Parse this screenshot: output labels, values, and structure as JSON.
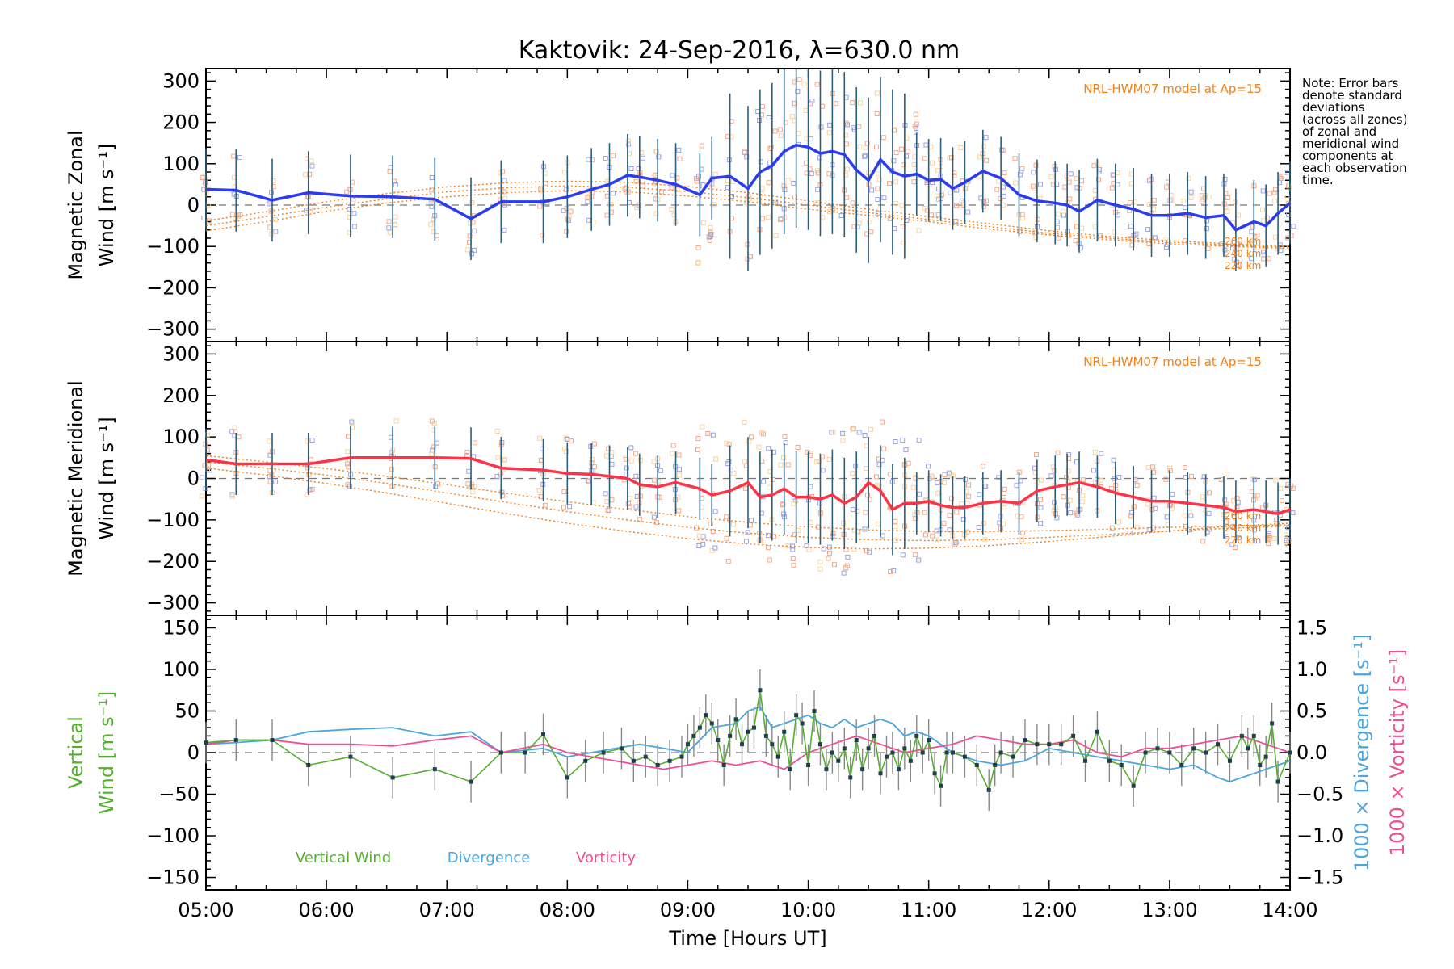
{
  "title": "Kaktovik: 24-Sep-2016, λ=630.0 nm",
  "note": [
    "Note: Error bars",
    "denote standard",
    "deviations",
    "(across all zones)",
    "of zonal and",
    "meridional wind",
    "components at",
    "each observation",
    "time."
  ],
  "colors": {
    "zonal": "#2b3bf0",
    "meridional": "#ff3347",
    "vertical": "#55b02e",
    "divergence": "#4aa6dd",
    "vorticity": "#ee4f93",
    "model": "#f0801a",
    "errbar": "#2a5f7e"
  },
  "chart_data": [
    {
      "type": "line",
      "ylabel": [
        "Magnetic Zonal",
        "Wind [m s⁻¹]"
      ],
      "ylim": [
        -330,
        330
      ],
      "yticks": [
        "300",
        "200",
        "100",
        "0",
        "−100",
        "−200",
        "−300"
      ],
      "model_label": "NRL-HWM07 model at Ap=15",
      "model_altitudes": [
        "260 km",
        "240 km",
        "220 km"
      ],
      "series": [
        {
          "x": [
            5.0,
            5.25,
            5.55,
            5.85,
            6.2,
            6.55,
            6.9,
            7.2,
            7.45,
            7.8,
            8.0,
            8.2,
            8.35,
            8.5,
            8.6,
            8.75,
            8.9,
            9.1,
            9.2,
            9.35,
            9.5,
            9.6,
            9.7,
            9.8,
            9.9,
            10.0,
            10.1,
            10.2,
            10.3,
            10.4,
            10.5,
            10.6,
            10.7,
            10.8,
            10.9,
            11.0,
            11.1,
            11.2,
            11.3,
            11.45,
            11.6,
            11.75,
            11.9,
            12.05,
            12.15,
            12.25,
            12.4,
            12.55,
            12.7,
            12.85,
            13.0,
            13.15,
            13.3,
            13.45,
            13.55,
            13.7,
            13.8,
            13.9,
            14.0
          ],
          "values": [
            38,
            36,
            12,
            30,
            22,
            20,
            14,
            -33,
            8,
            8,
            20,
            38,
            50,
            72,
            68,
            60,
            50,
            25,
            65,
            70,
            40,
            80,
            95,
            130,
            145,
            140,
            125,
            130,
            122,
            85,
            60,
            110,
            80,
            70,
            75,
            60,
            62,
            40,
            55,
            82,
            65,
            25,
            10,
            5,
            0,
            -15,
            12,
            0,
            -10,
            -25,
            -25,
            -20,
            -30,
            -25,
            -60,
            -40,
            -50,
            -20,
            5
          ]
        }
      ],
      "model_values": [
        {
          "x": [
            5.0,
            5.5,
            6.0,
            6.5,
            7.0,
            7.5,
            8.0,
            8.5,
            9.0,
            9.5,
            10.0,
            10.5,
            11.0,
            11.5,
            12.0,
            12.5,
            13.0,
            13.5,
            14.0
          ],
          "values": [
            -62,
            -40,
            -15,
            5,
            20,
            30,
            35,
            32,
            22,
            8,
            -10,
            -25,
            -40,
            -58,
            -72,
            -84,
            -94,
            -100,
            -105
          ]
        },
        {
          "x": [
            5.0,
            5.5,
            6.0,
            6.5,
            7.0,
            7.5,
            8.0,
            8.5,
            9.0,
            9.5,
            10.0,
            10.5,
            11.0,
            11.5,
            12.0,
            12.5,
            13.0,
            13.5,
            14.0
          ],
          "values": [
            -50,
            -28,
            -5,
            15,
            32,
            42,
            46,
            43,
            33,
            18,
            0,
            -18,
            -35,
            -52,
            -68,
            -80,
            -90,
            -97,
            -102
          ]
        },
        {
          "x": [
            5.0,
            5.5,
            6.0,
            6.5,
            7.0,
            7.5,
            8.0,
            8.5,
            9.0,
            9.5,
            10.0,
            10.5,
            11.0,
            11.5,
            12.0,
            12.5,
            13.0,
            13.5,
            14.0
          ],
          "values": [
            -38,
            -16,
            8,
            28,
            44,
            54,
            58,
            55,
            45,
            30,
            10,
            -10,
            -28,
            -45,
            -62,
            -76,
            -86,
            -94,
            -100
          ]
        }
      ]
    },
    {
      "type": "line",
      "ylabel": [
        "Magnetic Meridional",
        "Wind [m s⁻¹]"
      ],
      "ylim": [
        -330,
        330
      ],
      "yticks": [
        "300",
        "200",
        "100",
        "0",
        "−100",
        "−200",
        "−300"
      ],
      "model_label": "NRL-HWM07 model at Ap=15",
      "model_altitudes": [
        "260 km",
        "240 km",
        "220 km"
      ],
      "series": [
        {
          "x": [
            5.0,
            5.25,
            5.55,
            5.85,
            6.2,
            6.55,
            6.9,
            7.2,
            7.45,
            7.8,
            8.0,
            8.2,
            8.35,
            8.5,
            8.6,
            8.75,
            8.9,
            9.1,
            9.2,
            9.35,
            9.5,
            9.6,
            9.7,
            9.8,
            9.9,
            10.0,
            10.1,
            10.2,
            10.3,
            10.4,
            10.5,
            10.6,
            10.7,
            10.8,
            10.9,
            11.0,
            11.1,
            11.2,
            11.3,
            11.45,
            11.6,
            11.75,
            11.9,
            12.05,
            12.15,
            12.25,
            12.4,
            12.55,
            12.7,
            12.85,
            13.0,
            13.15,
            13.3,
            13.45,
            13.55,
            13.7,
            13.8,
            13.9,
            14.0
          ],
          "values": [
            45,
            35,
            35,
            35,
            50,
            50,
            50,
            48,
            25,
            20,
            12,
            10,
            5,
            0,
            -15,
            -20,
            -10,
            -25,
            -40,
            -30,
            -10,
            -45,
            -40,
            -25,
            -45,
            -45,
            -50,
            -40,
            -60,
            -45,
            -10,
            -30,
            -75,
            -60,
            -60,
            -55,
            -65,
            -70,
            -70,
            -60,
            -55,
            -60,
            -30,
            -20,
            -15,
            -10,
            -20,
            -35,
            -45,
            -55,
            -55,
            -60,
            -65,
            -70,
            -80,
            -75,
            -80,
            -85,
            -75
          ]
        }
      ],
      "model_values": [
        {
          "x": [
            5.0,
            5.5,
            6.0,
            6.5,
            7.0,
            7.5,
            8.0,
            8.5,
            9.0,
            9.5,
            10.0,
            10.5,
            11.0,
            11.5,
            12.0,
            12.5,
            13.0,
            13.5,
            14.0
          ],
          "values": [
            25,
            8,
            -12,
            -35,
            -60,
            -85,
            -108,
            -128,
            -145,
            -158,
            -166,
            -170,
            -168,
            -162,
            -152,
            -140,
            -127,
            -115,
            -108
          ]
        },
        {
          "x": [
            5.0,
            5.5,
            6.0,
            6.5,
            7.0,
            7.5,
            8.0,
            8.5,
            9.0,
            9.5,
            10.0,
            10.5,
            11.0,
            11.5,
            12.0,
            12.5,
            13.0,
            13.5,
            14.0
          ],
          "values": [
            40,
            25,
            8,
            -12,
            -35,
            -58,
            -80,
            -100,
            -118,
            -132,
            -142,
            -148,
            -150,
            -148,
            -142,
            -135,
            -127,
            -120,
            -115
          ]
        },
        {
          "x": [
            5.0,
            5.5,
            6.0,
            6.5,
            7.0,
            7.5,
            8.0,
            8.5,
            9.0,
            9.5,
            10.0,
            10.5,
            11.0,
            11.5,
            12.0,
            12.5,
            13.0,
            13.5,
            14.0
          ],
          "values": [
            55,
            40,
            24,
            5,
            -15,
            -36,
            -56,
            -75,
            -92,
            -106,
            -117,
            -124,
            -128,
            -128,
            -126,
            -122,
            -118,
            -114,
            -112
          ]
        }
      ]
    },
    {
      "type": "line",
      "ylabel": [
        "Vertical",
        "Wind [m s⁻¹]"
      ],
      "ylim": [
        -165,
        165
      ],
      "yticks": [
        "150",
        "100",
        "50",
        "0",
        "−50",
        "−100",
        "−150"
      ],
      "y2label_div": "1000 × Divergence [s⁻¹]",
      "y2label_vor": "1000 × Vorticity [s⁻¹]",
      "y2lim": [
        -1.65,
        1.65
      ],
      "y2ticks": [
        "1.5",
        "1.0",
        "0.5",
        "0.0",
        "−0.5",
        "−1.0",
        "−1.5"
      ],
      "xlabel": "Time [Hours UT]",
      "xticks": [
        "05:00",
        "06:00",
        "07:00",
        "08:00",
        "09:00",
        "10:00",
        "11:00",
        "12:00",
        "13:00",
        "14:00"
      ],
      "legend": [
        "Vertical Wind",
        "Divergence",
        "Vorticity"
      ],
      "series": [
        {
          "name": "Vertical Wind",
          "x": [
            5.0,
            5.25,
            5.55,
            5.85,
            6.2,
            6.55,
            6.9,
            7.2,
            7.45,
            7.65,
            7.8,
            8.0,
            8.15,
            8.3,
            8.45,
            8.55,
            8.65,
            8.75,
            8.85,
            8.95,
            9.0,
            9.05,
            9.1,
            9.15,
            9.2,
            9.25,
            9.3,
            9.35,
            9.4,
            9.45,
            9.5,
            9.55,
            9.6,
            9.65,
            9.7,
            9.75,
            9.8,
            9.85,
            9.9,
            9.95,
            10.0,
            10.05,
            10.1,
            10.15,
            10.2,
            10.25,
            10.3,
            10.35,
            10.4,
            10.45,
            10.5,
            10.55,
            10.6,
            10.65,
            10.7,
            10.75,
            10.8,
            10.85,
            10.9,
            10.95,
            11.0,
            11.05,
            11.1,
            11.15,
            11.2,
            11.3,
            11.4,
            11.5,
            11.55,
            11.6,
            11.7,
            11.8,
            11.9,
            12.0,
            12.1,
            12.2,
            12.3,
            12.4,
            12.5,
            12.6,
            12.7,
            12.8,
            12.9,
            13.0,
            13.1,
            13.2,
            13.3,
            13.4,
            13.5,
            13.6,
            13.65,
            13.7,
            13.75,
            13.8,
            13.85,
            13.9,
            14.0
          ],
          "values": [
            12,
            15,
            15,
            -15,
            -5,
            -30,
            -20,
            -35,
            0,
            0,
            22,
            -30,
            -10,
            0,
            5,
            -10,
            -5,
            -15,
            -10,
            -5,
            10,
            20,
            30,
            45,
            35,
            15,
            -15,
            20,
            40,
            10,
            25,
            30,
            75,
            20,
            10,
            -5,
            25,
            -20,
            45,
            35,
            -15,
            50,
            10,
            -20,
            0,
            -10,
            5,
            -30,
            15,
            -20,
            5,
            20,
            -25,
            -5,
            0,
            -20,
            5,
            -10,
            20,
            0,
            15,
            -25,
            -40,
            0,
            0,
            -5,
            -15,
            -45,
            -15,
            0,
            -5,
            15,
            10,
            10,
            10,
            20,
            -10,
            25,
            -10,
            -15,
            -40,
            0,
            5,
            0,
            -15,
            5,
            0,
            10,
            -10,
            20,
            5,
            20,
            -15,
            -5,
            35,
            -35,
            0
          ]
        },
        {
          "name": "Divergence",
          "x": [
            5.0,
            5.25,
            5.55,
            5.85,
            6.2,
            6.55,
            6.9,
            7.2,
            7.45,
            7.8,
            8.0,
            8.2,
            8.4,
            8.6,
            8.8,
            9.0,
            9.2,
            9.4,
            9.5,
            9.6,
            9.7,
            9.8,
            9.9,
            10.0,
            10.1,
            10.2,
            10.3,
            10.4,
            10.5,
            10.6,
            10.7,
            10.8,
            10.9,
            11.0,
            11.2,
            11.4,
            11.6,
            11.8,
            12.0,
            12.2,
            12.4,
            12.6,
            12.8,
            13.0,
            13.2,
            13.4,
            13.5,
            13.6,
            13.7,
            13.8,
            13.9,
            14.0
          ],
          "values": [
            0.1,
            0.12,
            0.15,
            0.25,
            0.28,
            0.3,
            0.2,
            0.25,
            0.0,
            0.05,
            -0.05,
            0.0,
            0.05,
            0.1,
            0.05,
            0.0,
            0.3,
            0.35,
            0.5,
            0.55,
            0.3,
            0.35,
            0.4,
            0.45,
            0.35,
            0.3,
            0.4,
            0.3,
            0.35,
            0.4,
            0.35,
            0.2,
            0.25,
            0.2,
            0.0,
            -0.1,
            -0.15,
            -0.1,
            0.05,
            0.0,
            -0.05,
            -0.1,
            -0.15,
            -0.2,
            -0.15,
            -0.3,
            -0.35,
            -0.3,
            -0.25,
            -0.2,
            -0.15,
            -0.1
          ]
        },
        {
          "name": "Vorticity",
          "x": [
            5.0,
            5.25,
            5.55,
            5.85,
            6.2,
            6.55,
            6.9,
            7.2,
            7.45,
            7.8,
            8.0,
            8.2,
            8.4,
            8.6,
            8.8,
            9.0,
            9.2,
            9.4,
            9.6,
            9.8,
            10.0,
            10.2,
            10.4,
            10.6,
            10.8,
            11.0,
            11.2,
            11.4,
            11.6,
            11.8,
            12.0,
            12.2,
            12.4,
            12.6,
            12.8,
            13.0,
            13.2,
            13.4,
            13.6,
            13.8,
            14.0
          ],
          "values": [
            0.1,
            0.15,
            0.15,
            0.1,
            0.1,
            0.08,
            0.15,
            0.2,
            0.0,
            0.1,
            0.0,
            -0.05,
            -0.1,
            -0.15,
            -0.2,
            -0.15,
            -0.1,
            -0.15,
            -0.1,
            -0.2,
            0.0,
            0.1,
            0.2,
            0.1,
            0.0,
            0.05,
            0.1,
            0.2,
            0.15,
            0.1,
            0.1,
            0.15,
            0.0,
            -0.05,
            0.05,
            0.05,
            0.1,
            0.15,
            0.2,
            0.1,
            0.0
          ]
        }
      ]
    }
  ]
}
